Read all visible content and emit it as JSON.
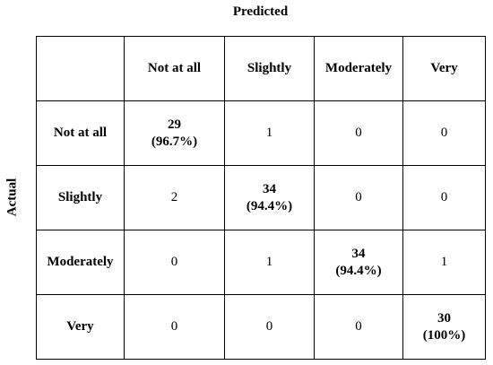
{
  "header": {
    "title": "Predicted"
  },
  "side_label": "Actual",
  "table": {
    "columns": [
      "Not at all",
      "Slightly",
      "Moderately",
      "Very"
    ],
    "rows": [
      {
        "label": "Not at all",
        "cells": [
          {
            "count": 29,
            "percent": "(96.7%)"
          },
          1,
          0,
          0
        ]
      },
      {
        "label": "Slightly",
        "cells": [
          2,
          {
            "count": 34,
            "percent": "(94.4%)"
          },
          0,
          0
        ]
      },
      {
        "label": "Moderately",
        "cells": [
          0,
          1,
          {
            "count": 34,
            "percent": "(94.4%)"
          },
          1
        ]
      },
      {
        "label": "Very",
        "cells": [
          0,
          0,
          0,
          {
            "count": 30,
            "percent": "(100%)"
          }
        ]
      }
    ]
  }
}
